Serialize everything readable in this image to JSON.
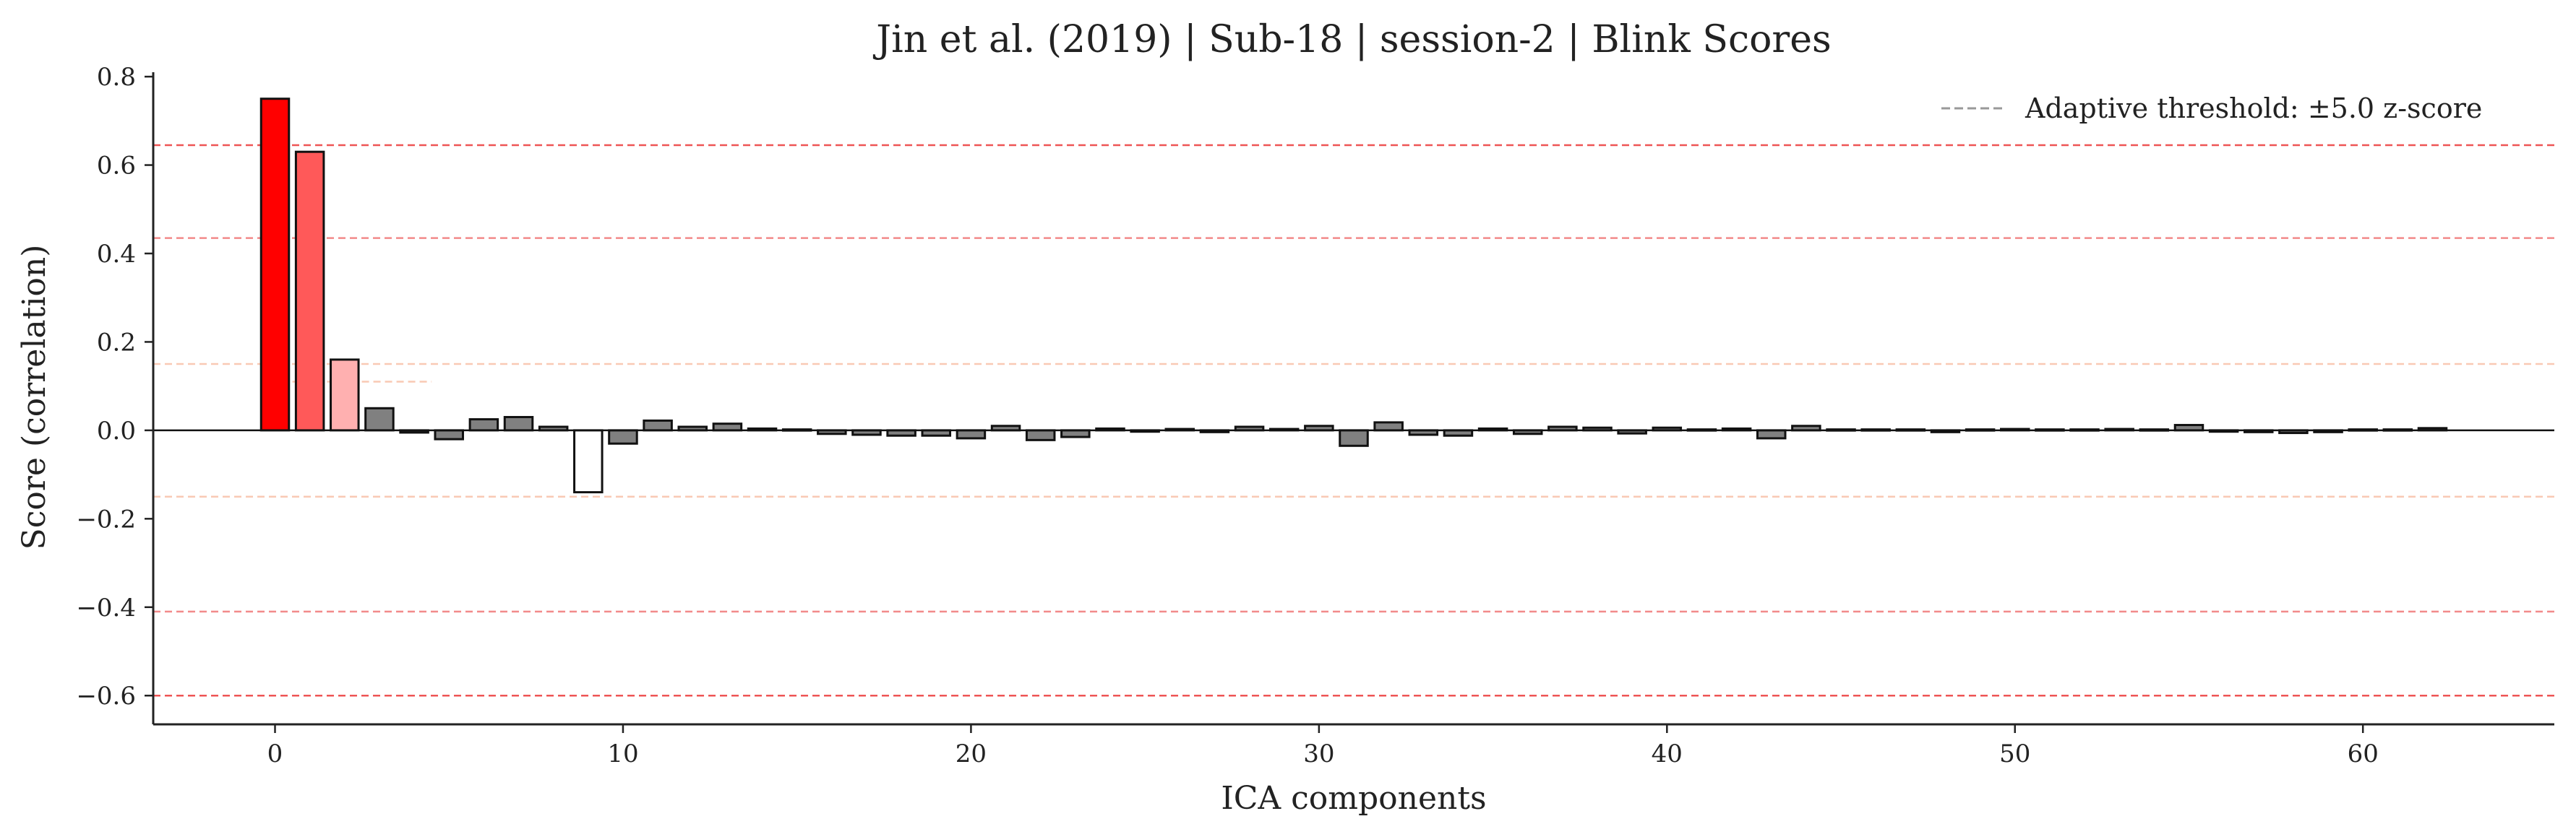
{
  "chart_data": {
    "type": "bar",
    "title": "Jin et al. (2019) | Sub-18 | session-2 | Blink Scores",
    "xlabel": "ICA components",
    "ylabel": "Score (correlation)",
    "xlim": [
      -3.5,
      65.5
    ],
    "ylim": [
      -0.665,
      0.81
    ],
    "xticks": [
      0,
      10,
      20,
      30,
      40,
      50,
      60
    ],
    "yticks": [
      -0.6,
      -0.4,
      -0.2,
      0.0,
      0.2,
      0.4,
      0.6,
      0.8
    ],
    "ytick_labels": [
      "−0.6",
      "−0.4",
      "−0.2",
      "0.0",
      "0.2",
      "0.4",
      "0.6",
      "0.8"
    ],
    "xtick_labels": [
      "0",
      "10",
      "20",
      "30",
      "40",
      "50",
      "60"
    ],
    "x": [
      0,
      1,
      2,
      3,
      4,
      5,
      6,
      7,
      8,
      9,
      10,
      11,
      12,
      13,
      14,
      15,
      16,
      17,
      18,
      19,
      20,
      21,
      22,
      23,
      24,
      25,
      26,
      27,
      28,
      29,
      30,
      31,
      32,
      33,
      34,
      35,
      36,
      37,
      38,
      39,
      40,
      41,
      42,
      43,
      44,
      45,
      46,
      47,
      48,
      49,
      50,
      51,
      52,
      53,
      54,
      55,
      56,
      57,
      58,
      59,
      60,
      61,
      62
    ],
    "values": [
      0.75,
      0.63,
      0.16,
      0.05,
      -0.005,
      -0.02,
      0.025,
      0.03,
      0.008,
      -0.14,
      -0.03,
      0.022,
      0.008,
      0.015,
      0.004,
      0.002,
      -0.008,
      -0.01,
      -0.012,
      -0.012,
      -0.018,
      0.01,
      -0.022,
      -0.015,
      0.004,
      -0.003,
      0.003,
      -0.004,
      0.008,
      0.003,
      0.01,
      -0.035,
      0.018,
      -0.01,
      -0.012,
      0.004,
      -0.008,
      0.008,
      0.006,
      -0.007,
      0.006,
      0.002,
      0.004,
      -0.018,
      0.01,
      0.002,
      0.002,
      0.002,
      -0.004,
      0.002,
      0.003,
      0.002,
      0.002,
      0.003,
      0.002,
      0.012,
      -0.003,
      -0.004,
      -0.006,
      -0.004,
      0.002,
      0.002,
      0.005
    ],
    "bar_colors": {
      "0": "#ff0000",
      "1": "#ff5959",
      "2": "#ffb0b0",
      "9": "#ffffff",
      "default": "#808080"
    },
    "threshold_lines": [
      {
        "value": 0.645,
        "color": "#ee5555"
      },
      {
        "value": 0.435,
        "color": "#f28a8a"
      },
      {
        "value": 0.15,
        "color": "#f9c9b4"
      },
      {
        "value": 0.11,
        "color": "#f9c9b4",
        "x_range": [
          0.5,
          4.5
        ]
      },
      {
        "value": -0.15,
        "color": "#f9c9b4"
      },
      {
        "value": -0.41,
        "color": "#f28a8a"
      },
      {
        "value": -0.6,
        "color": "#ee5555"
      }
    ],
    "legend": {
      "label": "Adaptive threshold: ±5.0 z-score",
      "line_color": "#999999",
      "position": "top-right"
    },
    "grid": false
  }
}
